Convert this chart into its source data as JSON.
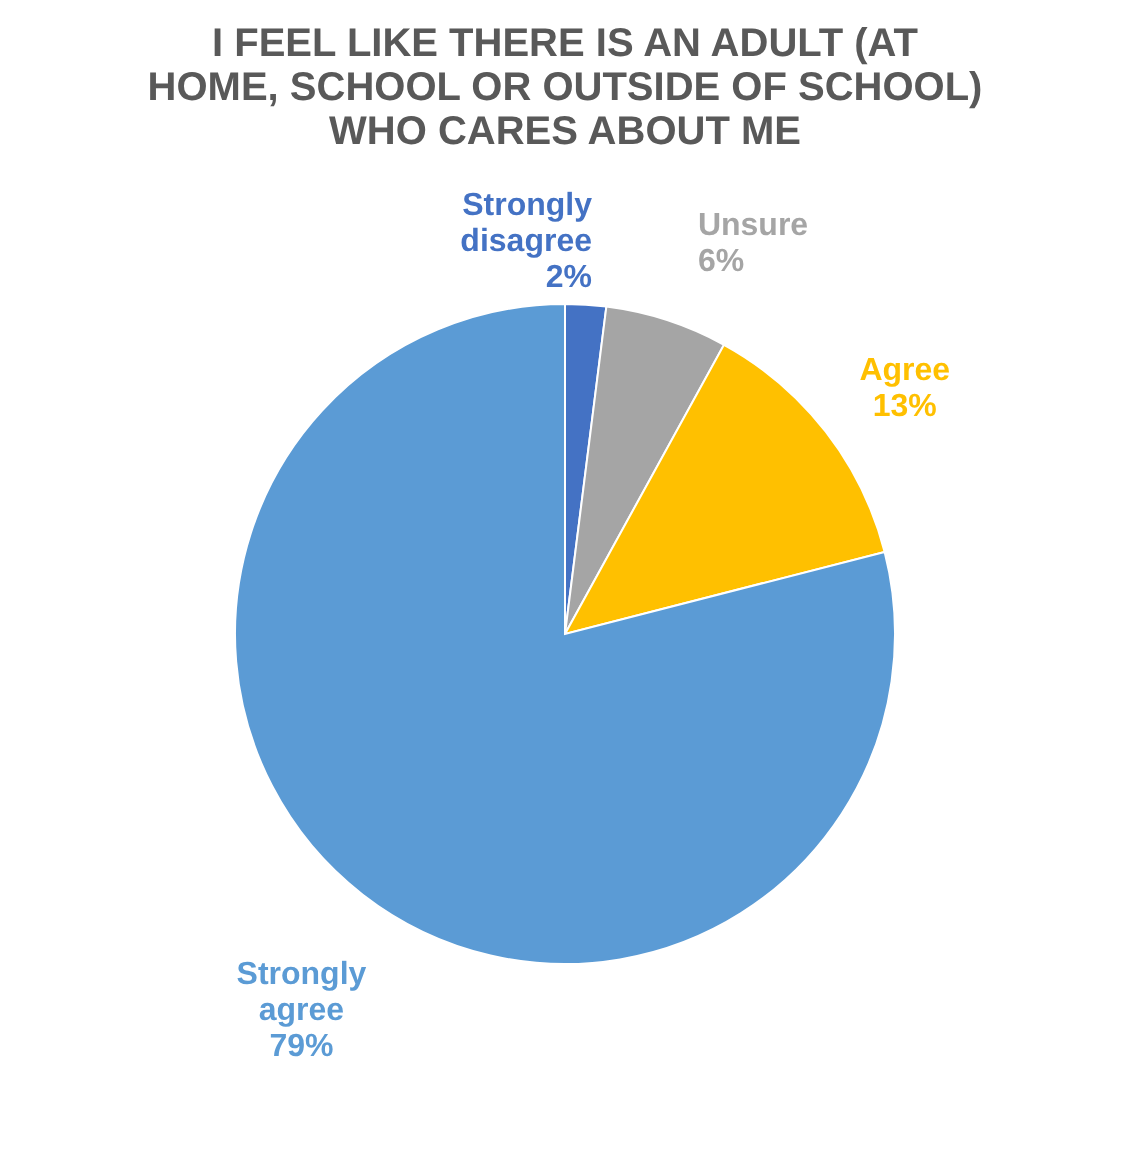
{
  "chart_data": {
    "type": "pie",
    "title": "I FEEL LIKE THERE IS AN ADULT (AT HOME, SCHOOL OR OUTSIDE OF SCHOOL) WHO CARES ABOUT ME",
    "categories": [
      "Strongly disagree",
      "Unsure",
      "Agree",
      "Strongly agree"
    ],
    "values": [
      2,
      6,
      13,
      79
    ],
    "value_labels": [
      "2%",
      "6%",
      "13%",
      "79%"
    ],
    "colors": [
      "#4472c4",
      "#a5a5a5",
      "#ffc000",
      "#5b9bd5"
    ],
    "legend": false
  }
}
